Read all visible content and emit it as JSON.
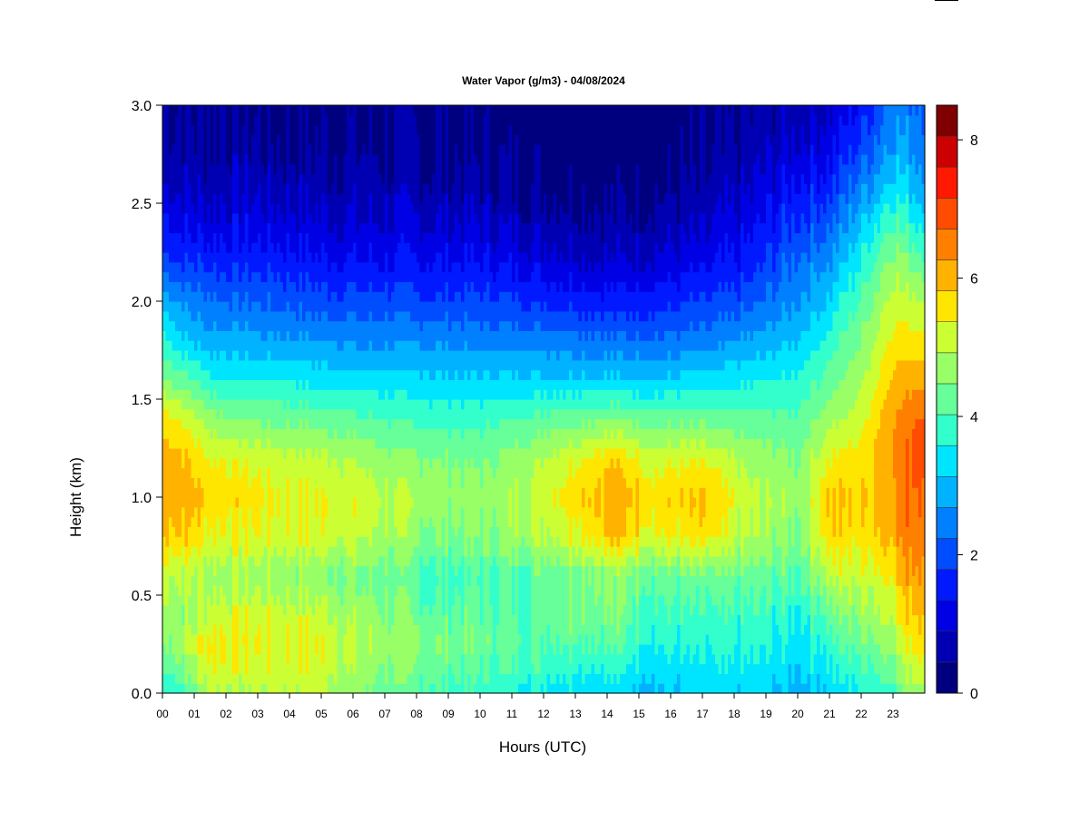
{
  "chart_data": {
    "type": "heatmap",
    "title": "Water Vapor (g/m3) - 04/08/2024",
    "xlabel": "Hours (UTC)",
    "ylabel": "Height (km)",
    "x_ticks": [
      "00",
      "01",
      "02",
      "03",
      "04",
      "05",
      "06",
      "07",
      "08",
      "09",
      "10",
      "11",
      "12",
      "13",
      "14",
      "15",
      "16",
      "17",
      "18",
      "19",
      "20",
      "21",
      "22",
      "23"
    ],
    "x_range": [
      0,
      24
    ],
    "y_ticks": [
      "0.0",
      "0.5",
      "1.0",
      "1.5",
      "2.0",
      "2.5",
      "3.0"
    ],
    "y_range": [
      0,
      3
    ],
    "colorbar": {
      "ticks": [
        "0",
        "2",
        "4",
        "6",
        "8"
      ],
      "range": [
        0,
        8.5
      ],
      "step": 0.5,
      "colors": [
        "#00007F",
        "#0000B2",
        "#0000E5",
        "#0019FF",
        "#004CFF",
        "#007FFF",
        "#00B2FF",
        "#00E5FF",
        "#33FFCC",
        "#66FF99",
        "#99FF66",
        "#CCFF33",
        "#FFE600",
        "#FFB200",
        "#FF7F00",
        "#FF4C00",
        "#FF1900",
        "#CC0000",
        "#7F0000"
      ]
    },
    "grid": false,
    "heights_km": [
      0.0,
      0.1,
      0.25,
      0.4,
      0.6,
      0.8,
      1.0,
      1.2,
      1.4,
      1.6,
      1.8,
      2.0,
      2.2,
      2.4,
      2.6,
      2.8,
      3.0
    ],
    "profiles": [
      {
        "hour": 0.0,
        "values": [
          4.0,
          4.5,
          5.0,
          5.4,
          5.8,
          6.6,
          7.0,
          6.8,
          6.3,
          5.1,
          4.2,
          3.3,
          2.2,
          1.6,
          1.0,
          0.7,
          0.5
        ]
      },
      {
        "hour": 0.8,
        "values": [
          4.5,
          5.0,
          5.6,
          5.2,
          5.6,
          6.4,
          6.8,
          6.5,
          5.8,
          4.6,
          3.5,
          2.8,
          2.0,
          1.3,
          0.9,
          0.6,
          0.5
        ]
      },
      {
        "hour": 1.5,
        "values": [
          5.6,
          6.0,
          6.2,
          5.8,
          5.3,
          6.0,
          6.4,
          6.0,
          5.2,
          4.1,
          3.2,
          2.6,
          1.9,
          1.2,
          0.8,
          0.6,
          0.5
        ]
      },
      {
        "hour": 2.5,
        "values": [
          5.4,
          5.7,
          6.1,
          5.9,
          5.3,
          6.0,
          6.3,
          5.9,
          5.0,
          4.0,
          3.2,
          2.5,
          1.8,
          1.3,
          0.9,
          0.6,
          0.5
        ]
      },
      {
        "hour": 3.5,
        "values": [
          5.6,
          5.8,
          6.0,
          5.8,
          5.2,
          5.9,
          6.1,
          5.7,
          4.9,
          4.0,
          3.1,
          2.4,
          1.8,
          1.2,
          0.8,
          0.5,
          0.4
        ]
      },
      {
        "hour": 5.0,
        "values": [
          5.6,
          5.8,
          6.0,
          5.7,
          5.1,
          5.9,
          6.0,
          5.6,
          4.8,
          3.8,
          3.0,
          2.2,
          1.6,
          1.1,
          0.7,
          0.5,
          0.4
        ]
      },
      {
        "hour": 6.3,
        "values": [
          5.0,
          5.2,
          5.4,
          5.2,
          4.9,
          5.6,
          5.8,
          5.4,
          4.6,
          3.7,
          2.9,
          2.2,
          1.5,
          1.0,
          0.7,
          0.5,
          0.4
        ]
      },
      {
        "hour": 7.0,
        "values": [
          4.8,
          5.0,
          5.4,
          5.1,
          4.8,
          5.4,
          5.6,
          5.2,
          4.5,
          3.7,
          2.9,
          2.2,
          1.5,
          1.1,
          0.7,
          0.5,
          0.4
        ]
      },
      {
        "hour": 8.5,
        "values": [
          4.5,
          4.7,
          5.0,
          4.7,
          4.3,
          5.0,
          5.3,
          5.0,
          4.3,
          3.6,
          2.9,
          2.1,
          1.5,
          1.0,
          0.6,
          0.5,
          0.4
        ]
      },
      {
        "hour": 10.0,
        "values": [
          4.3,
          4.5,
          4.8,
          4.7,
          4.5,
          5.0,
          5.2,
          4.9,
          4.3,
          3.6,
          2.8,
          2.1,
          1.5,
          1.0,
          0.6,
          0.4,
          0.3
        ]
      },
      {
        "hour": 11.5,
        "values": [
          4.0,
          4.3,
          4.7,
          4.7,
          4.6,
          5.4,
          5.6,
          5.3,
          4.6,
          3.6,
          2.8,
          2.0,
          1.3,
          0.8,
          0.5,
          0.3,
          0.2
        ]
      },
      {
        "hour": 13.0,
        "values": [
          3.8,
          4.2,
          4.7,
          5.0,
          5.1,
          6.1,
          6.4,
          6.0,
          4.8,
          3.6,
          2.7,
          1.8,
          1.1,
          0.7,
          0.4,
          0.2,
          0.1
        ]
      },
      {
        "hour": 14.2,
        "values": [
          3.6,
          4.0,
          4.6,
          5.0,
          5.1,
          6.6,
          6.9,
          6.4,
          5.0,
          3.6,
          2.6,
          1.7,
          1.0,
          0.6,
          0.3,
          0.1,
          0.1
        ]
      },
      {
        "hour": 15.5,
        "values": [
          3.4,
          3.7,
          4.1,
          4.4,
          4.8,
          6.0,
          6.3,
          5.8,
          4.8,
          3.5,
          2.6,
          1.8,
          1.1,
          0.7,
          0.4,
          0.2,
          0.2
        ]
      },
      {
        "hour": 17.0,
        "values": [
          3.5,
          3.7,
          4.0,
          4.2,
          4.7,
          6.1,
          6.5,
          5.9,
          4.8,
          3.7,
          2.7,
          2.0,
          1.3,
          0.8,
          0.5,
          0.3,
          0.3
        ]
      },
      {
        "hour": 18.5,
        "values": [
          3.6,
          3.8,
          4.1,
          4.3,
          4.7,
          5.4,
          5.6,
          5.3,
          4.7,
          3.9,
          3.1,
          2.3,
          1.7,
          1.3,
          0.9,
          0.6,
          0.5
        ]
      },
      {
        "hour": 20.0,
        "values": [
          3.3,
          3.6,
          3.8,
          4.1,
          4.6,
          5.0,
          5.2,
          5.0,
          4.6,
          4.1,
          3.5,
          3.0,
          2.6,
          2.1,
          1.6,
          1.1,
          0.8
        ]
      },
      {
        "hour": 21.0,
        "values": [
          3.6,
          3.9,
          4.3,
          4.8,
          5.6,
          6.4,
          6.6,
          6.0,
          5.3,
          4.7,
          4.2,
          3.6,
          3.0,
          2.4,
          1.8,
          1.3,
          1.0
        ]
      },
      {
        "hour": 22.0,
        "values": [
          4.0,
          4.3,
          4.8,
          5.2,
          5.7,
          6.2,
          6.4,
          6.2,
          5.8,
          5.4,
          5.0,
          4.6,
          4.0,
          3.4,
          2.7,
          2.1,
          1.6
        ]
      },
      {
        "hour": 23.0,
        "values": [
          4.5,
          4.9,
          5.4,
          5.9,
          6.3,
          6.9,
          7.1,
          7.2,
          7.0,
          6.6,
          6.2,
          5.8,
          5.3,
          4.6,
          3.8,
          3.2,
          2.8
        ]
      },
      {
        "hour": 23.8,
        "values": [
          5.4,
          5.9,
          6.4,
          6.8,
          7.2,
          7.5,
          7.6,
          7.8,
          7.6,
          6.9,
          6.2,
          5.6,
          4.8,
          4.0,
          3.3,
          2.9,
          2.6
        ]
      }
    ]
  }
}
